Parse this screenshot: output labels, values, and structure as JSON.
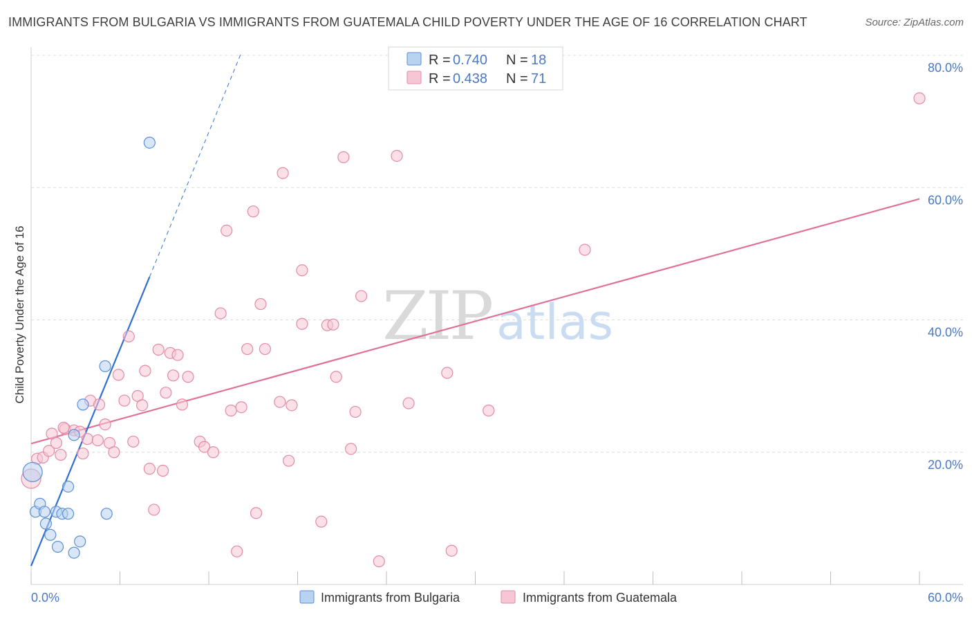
{
  "title": "IMMIGRANTS FROM BULGARIA VS IMMIGRANTS FROM GUATEMALA CHILD POVERTY UNDER THE AGE OF 16 CORRELATION CHART",
  "source": "Source: ZipAtlas.com",
  "watermark": {
    "zip": "ZIP",
    "atlas": "atlas"
  },
  "colors": {
    "bulgaria_fill": "#b8d2f2",
    "bulgaria_stroke": "#5a8fd6",
    "bulgaria_line": "#2f6fcf",
    "guatemala_fill": "#f7c6d4",
    "guatemala_stroke": "#e28aa6",
    "guatemala_line": "#e07098"
  },
  "legend": {
    "rows": [
      {
        "r_label": "R =",
        "r_value": "0.740",
        "n_label": "N =",
        "n_value": "18"
      },
      {
        "r_label": "R =",
        "r_value": "0.438",
        "n_label": "N =",
        "n_value": "71"
      }
    ]
  },
  "chart_data": {
    "type": "scatter",
    "title": "IMMIGRANTS FROM BULGARIA VS IMMIGRANTS FROM GUATEMALA CHILD POVERTY UNDER THE AGE OF 16 CORRELATION CHART",
    "xlabel": "",
    "ylabel": "Child Poverty Under the Age of 16",
    "xlim": [
      0,
      60
    ],
    "ylim": [
      0,
      80
    ],
    "x_tick_labels": [
      "0.0%",
      "60.0%"
    ],
    "y_tick_labels": [
      "20.0%",
      "40.0%",
      "60.0%",
      "80.0%"
    ],
    "y_ticks": [
      20,
      40,
      60,
      80
    ],
    "x_ticks": [
      0,
      60
    ],
    "grid": true,
    "legend_position": "top-center",
    "series": [
      {
        "name": "Immigrants from Bulgaria",
        "r": 0.74,
        "n": 18,
        "trend": {
          "x0": 0.0,
          "y0": 2.8,
          "x1": 8.0,
          "y1": 46.5,
          "dash_to_x": 14.2,
          "dash_to_y": 80.4
        },
        "points": [
          [
            0.1,
            17.0
          ],
          [
            0.3,
            11.0
          ],
          [
            0.6,
            12.2
          ],
          [
            0.9,
            11.0
          ],
          [
            1.0,
            9.2
          ],
          [
            1.3,
            7.5
          ],
          [
            1.7,
            11.0
          ],
          [
            1.8,
            5.7
          ],
          [
            2.1,
            10.7
          ],
          [
            2.5,
            10.7
          ],
          [
            2.5,
            14.8
          ],
          [
            2.9,
            22.6
          ],
          [
            2.9,
            4.8
          ],
          [
            3.3,
            6.5
          ],
          [
            3.5,
            27.2
          ],
          [
            5.1,
            10.7
          ],
          [
            5.0,
            33.0
          ],
          [
            8.0,
            66.8
          ]
        ]
      },
      {
        "name": "Immigrants from Guatemala",
        "r": 0.438,
        "n": 71,
        "trend": {
          "x0": 0.0,
          "y0": 21.3,
          "x1": 60.0,
          "y1": 58.3
        },
        "points": [
          [
            0.0,
            16.0
          ],
          [
            0.4,
            19.0
          ],
          [
            0.8,
            19.2
          ],
          [
            1.2,
            20.2
          ],
          [
            1.4,
            22.8
          ],
          [
            1.7,
            21.4
          ],
          [
            2.0,
            19.6
          ],
          [
            2.3,
            23.5
          ],
          [
            2.9,
            23.3
          ],
          [
            3.5,
            19.8
          ],
          [
            3.8,
            22.0
          ],
          [
            4.0,
            27.8
          ],
          [
            4.6,
            27.2
          ],
          [
            4.5,
            21.8
          ],
          [
            5.0,
            24.2
          ],
          [
            5.3,
            21.4
          ],
          [
            5.6,
            20.0
          ],
          [
            5.9,
            31.7
          ],
          [
            6.3,
            27.8
          ],
          [
            6.6,
            37.5
          ],
          [
            6.9,
            21.6
          ],
          [
            7.2,
            28.5
          ],
          [
            7.5,
            27.1
          ],
          [
            7.7,
            32.3
          ],
          [
            8.0,
            17.5
          ],
          [
            8.3,
            11.3
          ],
          [
            8.6,
            35.5
          ],
          [
            8.9,
            17.2
          ],
          [
            9.1,
            29.0
          ],
          [
            9.4,
            35.0
          ],
          [
            9.6,
            31.6
          ],
          [
            9.9,
            34.7
          ],
          [
            10.2,
            27.2
          ],
          [
            10.6,
            31.4
          ],
          [
            11.4,
            21.6
          ],
          [
            11.7,
            20.8
          ],
          [
            12.3,
            20.0
          ],
          [
            12.8,
            41.0
          ],
          [
            13.2,
            53.5
          ],
          [
            13.5,
            26.3
          ],
          [
            13.9,
            5.0
          ],
          [
            14.2,
            26.8
          ],
          [
            14.6,
            35.6
          ],
          [
            15.0,
            56.4
          ],
          [
            15.2,
            10.8
          ],
          [
            15.5,
            42.4
          ],
          [
            15.8,
            35.6
          ],
          [
            16.8,
            27.6
          ],
          [
            17.0,
            62.2
          ],
          [
            17.4,
            18.7
          ],
          [
            17.6,
            27.1
          ],
          [
            18.3,
            39.4
          ],
          [
            18.3,
            47.5
          ],
          [
            19.6,
            9.5
          ],
          [
            20.0,
            39.2
          ],
          [
            20.4,
            39.3
          ],
          [
            20.6,
            31.4
          ],
          [
            21.1,
            64.6
          ],
          [
            21.6,
            20.5
          ],
          [
            21.9,
            26.1
          ],
          [
            22.3,
            43.6
          ],
          [
            23.5,
            3.5
          ],
          [
            24.7,
            64.8
          ],
          [
            25.5,
            27.4
          ],
          [
            28.1,
            32.0
          ],
          [
            28.4,
            5.1
          ],
          [
            30.9,
            26.3
          ],
          [
            37.4,
            50.6
          ],
          [
            60.0,
            73.5
          ],
          [
            2.2,
            23.7
          ],
          [
            3.3,
            23.1
          ]
        ]
      }
    ]
  }
}
